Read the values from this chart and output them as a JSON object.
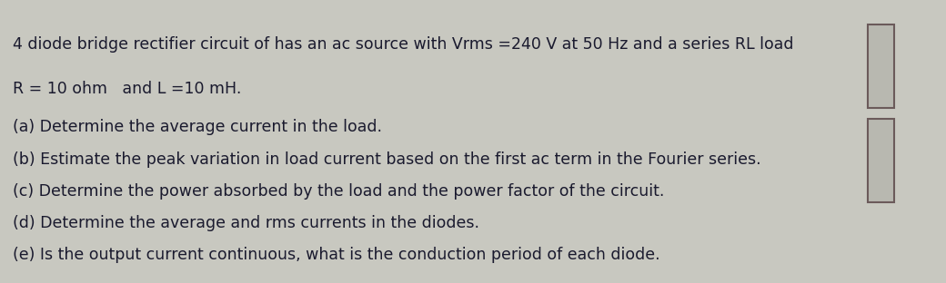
{
  "bg_color": "#c8c8c0",
  "text_color": "#1a1a2e",
  "title_line1": "4 diode bridge rectifier circuit of has an ac source with Vrms =240 V at 50 Hz and a series RL load",
  "title_line2": "R = 10 ohm   and L =10 mH.",
  "items": [
    "(a) Determine the average current in the load.",
    "(b) Estimate the peak variation in load current based on the first ac term in the Fourier series.",
    "(c) Determine the power absorbed by the load and the power factor of the circuit.",
    "(d) Determine the average and rms currents in the diodes.",
    "(e) Is the output current continuous, what is the conduction period of each diode."
  ],
  "font_size_title": 12.5,
  "font_size_items": 12.5,
  "figsize": [
    10.4,
    3.12
  ],
  "dpi": 100
}
